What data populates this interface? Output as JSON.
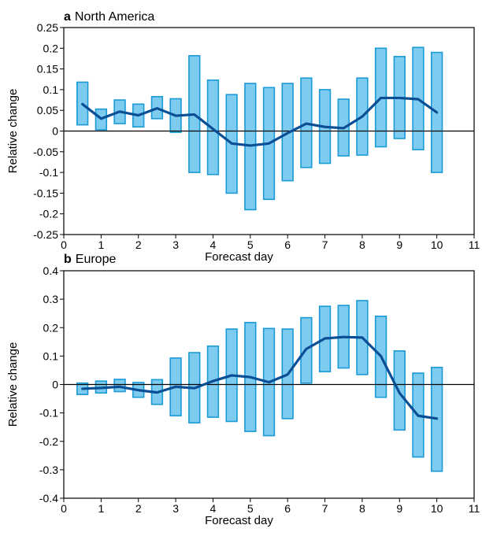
{
  "chart_data": [
    {
      "type": "bar",
      "panel_letter": "a",
      "title": "North America",
      "xlabel": "Forecast day",
      "ylabel": "Relative change",
      "xlim": [
        0,
        11
      ],
      "ylim": [
        -0.25,
        0.25
      ],
      "xticks": [
        "0",
        "1",
        "2",
        "3",
        "4",
        "5",
        "6",
        "7",
        "8",
        "9",
        "10",
        "11"
      ],
      "yticks": [
        "-0.25",
        "-0.2",
        "-0.15",
        "-0.1",
        "-0.05",
        "0",
        "0.05",
        "0.1",
        "0.15",
        "0.2",
        "0.25"
      ],
      "colors": {
        "bar_fill": "#7ecbf0",
        "bar_edge": "#1a9ad6",
        "line": "#0a4f96",
        "zero_line": "#000000"
      },
      "series": [
        {
          "type": "range_bar",
          "x": [
            0.5,
            1,
            1.5,
            2,
            2.5,
            3,
            3.5,
            4,
            4.5,
            5,
            5.5,
            6,
            6.5,
            7,
            7.5,
            8,
            8.5,
            9,
            9.5,
            10
          ],
          "low": [
            0.015,
            0.003,
            0.018,
            0.01,
            0.03,
            -0.003,
            -0.1,
            -0.105,
            -0.15,
            -0.19,
            -0.165,
            -0.12,
            -0.088,
            -0.078,
            -0.06,
            -0.058,
            -0.038,
            -0.018,
            -0.045,
            -0.1
          ],
          "high": [
            0.118,
            0.053,
            0.075,
            0.065,
            0.083,
            0.078,
            0.182,
            0.123,
            0.088,
            0.115,
            0.105,
            0.115,
            0.128,
            0.1,
            0.077,
            0.128,
            0.2,
            0.18,
            0.202,
            0.19
          ]
        },
        {
          "type": "line",
          "x": [
            0.5,
            1,
            1.5,
            2,
            2.5,
            3,
            3.5,
            4,
            4.5,
            5,
            5.5,
            6,
            6.5,
            7,
            7.5,
            8,
            8.5,
            9,
            9.5,
            10
          ],
          "values": [
            0.065,
            0.03,
            0.047,
            0.038,
            0.055,
            0.037,
            0.04,
            0.005,
            -0.03,
            -0.035,
            -0.03,
            -0.005,
            0.018,
            0.01,
            0.007,
            0.035,
            0.08,
            0.08,
            0.077,
            0.045
          ]
        }
      ]
    },
    {
      "type": "bar",
      "panel_letter": "b",
      "title": "Europe",
      "xlabel": "Forecast day",
      "ylabel": "Relative change",
      "xlim": [
        0,
        11
      ],
      "ylim": [
        -0.4,
        0.4
      ],
      "xticks": [
        "0",
        "1",
        "2",
        "3",
        "4",
        "5",
        "6",
        "7",
        "8",
        "9",
        "10",
        "11"
      ],
      "yticks": [
        "-0.4",
        "-0.3",
        "-0.2",
        "-0.1",
        "0",
        "0.1",
        "0.2",
        "0.3",
        "0.4"
      ],
      "colors": {
        "bar_fill": "#7ecbf0",
        "bar_edge": "#1a9ad6",
        "line": "#0a4f96",
        "zero_line": "#000000"
      },
      "series": [
        {
          "type": "range_bar",
          "x": [
            0.5,
            1,
            1.5,
            2,
            2.5,
            3,
            3.5,
            4,
            4.5,
            5,
            5.5,
            6,
            6.5,
            7,
            7.5,
            8,
            8.5,
            9,
            9.5,
            10
          ],
          "low": [
            -0.035,
            -0.03,
            -0.025,
            -0.045,
            -0.07,
            -0.11,
            -0.135,
            -0.115,
            -0.13,
            -0.165,
            -0.18,
            -0.12,
            0.005,
            0.045,
            0.058,
            0.035,
            -0.045,
            -0.16,
            -0.255,
            -0.305
          ],
          "high": [
            0.005,
            0.012,
            0.018,
            0.007,
            0.017,
            0.093,
            0.112,
            0.135,
            0.195,
            0.218,
            0.197,
            0.195,
            0.235,
            0.275,
            0.278,
            0.295,
            0.24,
            0.118,
            0.04,
            0.06
          ]
        },
        {
          "type": "line",
          "x": [
            0.5,
            1,
            1.5,
            2,
            2.5,
            3,
            3.5,
            4,
            4.5,
            5,
            5.5,
            6,
            6.5,
            7,
            7.5,
            8,
            8.5,
            9,
            9.5,
            10
          ],
          "values": [
            -0.015,
            -0.012,
            -0.008,
            -0.02,
            -0.028,
            -0.008,
            -0.013,
            0.012,
            0.032,
            0.026,
            0.008,
            0.035,
            0.125,
            0.162,
            0.167,
            0.165,
            0.1,
            -0.03,
            -0.11,
            -0.12
          ]
        }
      ]
    }
  ]
}
